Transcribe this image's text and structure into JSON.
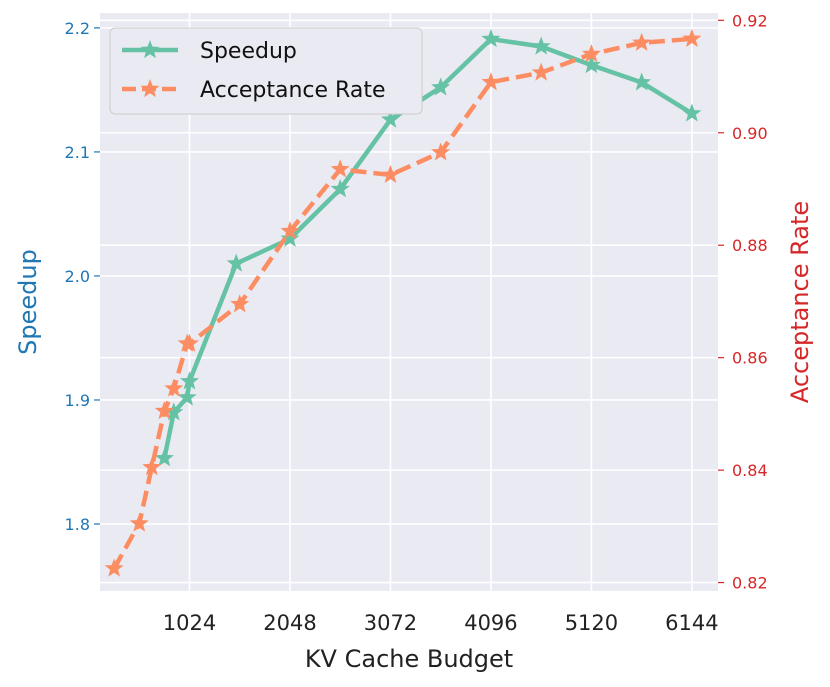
{
  "chart_data": {
    "type": "line",
    "xlabel": "KV Cache Budget",
    "ylabel": "Speedup",
    "ylabel_right": "Acceptance Rate",
    "x_ticks": [
      1024,
      2048,
      3072,
      4096,
      5120,
      6144
    ],
    "y_ticks": [
      1.8,
      1.9,
      2.0,
      2.1,
      2.2
    ],
    "y_ticks_right": [
      0.82,
      0.84,
      0.86,
      0.88,
      0.9,
      0.92
    ],
    "xlim": [
      112,
      6410
    ],
    "ylim": [
      1.746,
      2.212
    ],
    "ylim_right": [
      0.8185,
      0.9213
    ],
    "grid": true,
    "legend_position": "upper-left",
    "series": [
      {
        "name": "Speedup",
        "axis": "left",
        "style": "solid",
        "color": "#66c2a5",
        "marker": "star",
        "x": [
          768,
          864,
          1000,
          1024,
          1500,
          2048,
          2560,
          3072,
          3584,
          4096,
          4608,
          5120,
          5632,
          6144
        ],
        "y": [
          1.853,
          1.89,
          1.902,
          1.915,
          2.01,
          2.03,
          2.07,
          2.126,
          2.152,
          2.191,
          2.185,
          2.17,
          2.156,
          2.131
        ]
      },
      {
        "name": "Acceptance Rate",
        "axis": "right",
        "style": "dashed",
        "color": "#fc8d62",
        "marker": "star",
        "x": [
          256,
          512,
          640,
          768,
          864,
          1000,
          1024,
          1536,
          2048,
          2560,
          3072,
          3584,
          4096,
          4608,
          5120,
          5632,
          6144
        ],
        "y": [
          0.8225,
          0.8305,
          0.8405,
          0.8505,
          0.8545,
          0.8625,
          0.8625,
          0.8695,
          0.8825,
          0.8935,
          0.8925,
          0.8965,
          0.909,
          0.9107,
          0.914,
          0.916,
          0.9167
        ]
      }
    ]
  }
}
